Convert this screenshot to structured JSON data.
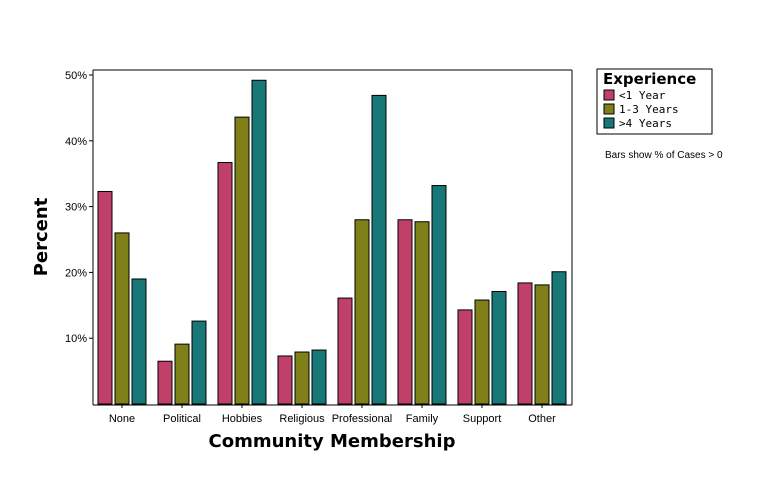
{
  "chart_data": {
    "type": "bar",
    "xlabel": "Community Membership",
    "ylabel": "Percent",
    "ylim": [
      0,
      50
    ],
    "yticks": [
      10,
      20,
      30,
      40,
      50
    ],
    "ytick_labels": [
      "10%",
      "20%",
      "30%",
      "40%",
      "50%"
    ],
    "grid": false,
    "legend_placement": "top-right, outside plot",
    "legend_title": "Experience",
    "note": "Bars show % of Cases > 0",
    "categories": [
      "None",
      "Political",
      "Hobbies",
      "Religious",
      "Professional",
      "Family",
      "Support",
      "Other"
    ],
    "series": [
      {
        "name": "<1 Year",
        "color": "#c0406a",
        "values": [
          32.3,
          6.5,
          36.7,
          7.3,
          16.1,
          28.0,
          14.3,
          18.4
        ]
      },
      {
        "name": "1-3 Years",
        "color": "#808018",
        "values": [
          26.0,
          9.1,
          43.6,
          7.9,
          28.0,
          27.7,
          15.8,
          18.1
        ]
      },
      {
        "name": ">4 Years",
        "color": "#187878",
        "values": [
          19.0,
          12.6,
          49.2,
          8.2,
          46.9,
          33.2,
          17.1,
          20.1
        ]
      }
    ]
  }
}
